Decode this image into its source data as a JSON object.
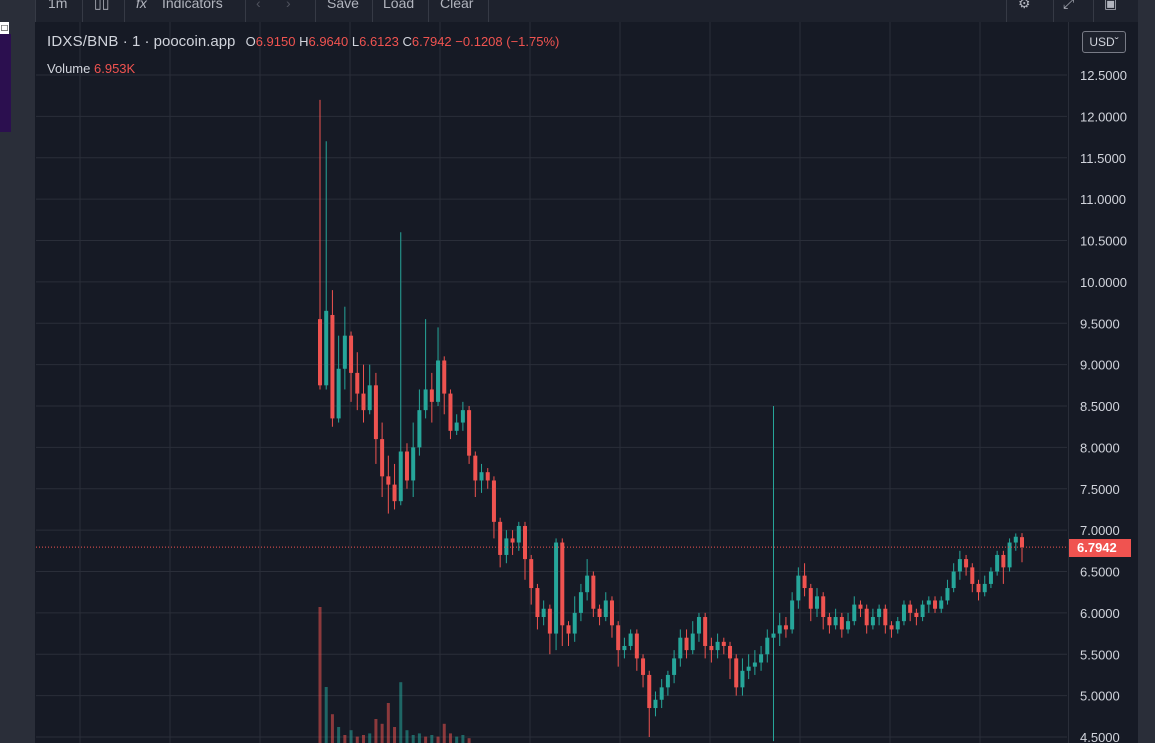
{
  "toolbar": {
    "interval": "1m",
    "indicators_label": "Indicators",
    "save_label": "Save",
    "load_label": "Load",
    "clear_label": "Clear",
    "currency": "USD"
  },
  "legend": {
    "pair": "IDXS/BNB",
    "interval": "1",
    "source": "poocoin.app",
    "o_label": "O",
    "o": "6.9150",
    "h_label": "H",
    "h": "6.9640",
    "l_label": "L",
    "l": "6.6123",
    "c_label": "C",
    "c": "6.7942",
    "change": "−0.1208 (−1.75%)",
    "volume_label": "Volume",
    "volume": "6.953K"
  },
  "colors": {
    "up": "#26a69a",
    "down": "#ef5350",
    "background": "#161a25",
    "grid": "#2a2e39"
  },
  "chart_data": {
    "type": "candlestick",
    "y_ticks": [
      "12.5000",
      "12.0000",
      "11.5000",
      "11.0000",
      "10.5000",
      "10.0000",
      "9.5000",
      "9.0000",
      "8.5000",
      "8.0000",
      "7.5000",
      "7.0000",
      "6.5000",
      "6.0000",
      "5.5000",
      "5.0000",
      "4.5000"
    ],
    "ylim": [
      4.45,
      12.95
    ],
    "last_price": "6.7942",
    "grid": true,
    "candles": [
      [
        9.55,
        8.75,
        12.2,
        8.7
      ],
      [
        8.75,
        9.65,
        11.7,
        8.7
      ],
      [
        9.6,
        8.35,
        9.9,
        8.25
      ],
      [
        8.35,
        8.95,
        9.35,
        8.3
      ],
      [
        8.95,
        9.35,
        9.7,
        8.7
      ],
      [
        9.35,
        8.9,
        9.4,
        8.55
      ],
      [
        8.9,
        8.65,
        9.15,
        8.45
      ],
      [
        8.65,
        8.45,
        9.0,
        8.3
      ],
      [
        8.45,
        8.75,
        9.0,
        8.4
      ],
      [
        8.75,
        8.1,
        8.9,
        7.8
      ],
      [
        8.1,
        7.65,
        8.3,
        7.4
      ],
      [
        7.65,
        7.55,
        7.9,
        7.2
      ],
      [
        7.55,
        7.35,
        7.8,
        7.25
      ],
      [
        7.35,
        7.95,
        10.6,
        7.3
      ],
      [
        7.95,
        7.6,
        8.05,
        7.5
      ],
      [
        7.6,
        8.0,
        8.3,
        7.4
      ],
      [
        8.0,
        8.45,
        8.7,
        7.9
      ],
      [
        8.45,
        8.7,
        9.55,
        8.35
      ],
      [
        8.7,
        8.55,
        8.9,
        8.3
      ],
      [
        8.55,
        9.05,
        9.45,
        8.5
      ],
      [
        9.05,
        8.65,
        9.1,
        8.4
      ],
      [
        8.65,
        8.2,
        8.7,
        8.1
      ],
      [
        8.2,
        8.3,
        8.4,
        8.15
      ],
      [
        8.3,
        8.45,
        8.55,
        8.2
      ],
      [
        8.45,
        7.9,
        8.5,
        7.8
      ],
      [
        7.9,
        7.6,
        7.95,
        7.4
      ],
      [
        7.6,
        7.7,
        7.8,
        7.45
      ],
      [
        7.7,
        7.6,
        7.75,
        7.5
      ],
      [
        7.6,
        7.1,
        7.65,
        6.9
      ],
      [
        7.1,
        6.7,
        7.15,
        6.55
      ],
      [
        6.7,
        6.9,
        7.0,
        6.6
      ],
      [
        6.9,
        6.85,
        7.0,
        6.7
      ],
      [
        6.85,
        7.05,
        7.1,
        6.75
      ],
      [
        7.05,
        6.65,
        7.1,
        6.4
      ],
      [
        6.65,
        6.3,
        6.7,
        6.1
      ],
      [
        6.3,
        5.95,
        6.35,
        5.8
      ],
      [
        5.95,
        6.05,
        6.15,
        5.85
      ],
      [
        6.05,
        5.75,
        6.1,
        5.5
      ],
      [
        5.75,
        6.85,
        6.9,
        5.55
      ],
      [
        6.85,
        5.85,
        6.9,
        5.6
      ],
      [
        5.85,
        5.75,
        5.9,
        5.6
      ],
      [
        5.75,
        6.0,
        6.2,
        5.65
      ],
      [
        6.0,
        6.25,
        6.35,
        5.9
      ],
      [
        6.25,
        6.45,
        6.65,
        6.15
      ],
      [
        6.45,
        6.05,
        6.5,
        5.95
      ],
      [
        6.05,
        5.95,
        6.1,
        5.85
      ],
      [
        5.95,
        6.15,
        6.25,
        5.9
      ],
      [
        6.15,
        5.85,
        6.2,
        5.7
      ],
      [
        5.85,
        5.55,
        5.9,
        5.35
      ],
      [
        5.55,
        5.6,
        5.7,
        5.45
      ],
      [
        5.6,
        5.75,
        5.8,
        5.55
      ],
      [
        5.75,
        5.45,
        5.8,
        5.3
      ],
      [
        5.45,
        5.25,
        5.5,
        5.1
      ],
      [
        5.25,
        4.85,
        5.3,
        4.5
      ],
      [
        4.85,
        4.95,
        5.05,
        4.75
      ],
      [
        4.95,
        5.1,
        5.2,
        4.85
      ],
      [
        5.1,
        5.25,
        5.3,
        5.0
      ],
      [
        5.25,
        5.45,
        5.55,
        5.15
      ],
      [
        5.45,
        5.7,
        5.8,
        5.35
      ],
      [
        5.7,
        5.55,
        5.8,
        5.45
      ],
      [
        5.55,
        5.75,
        5.9,
        5.5
      ],
      [
        5.75,
        5.95,
        6.0,
        5.65
      ],
      [
        5.95,
        5.6,
        6.0,
        5.45
      ],
      [
        5.6,
        5.55,
        5.7,
        5.4
      ],
      [
        5.55,
        5.65,
        5.75,
        5.45
      ],
      [
        5.65,
        5.6,
        5.7,
        5.5
      ],
      [
        5.6,
        5.45,
        5.65,
        5.2
      ],
      [
        5.45,
        5.1,
        5.5,
        5.0
      ],
      [
        5.1,
        5.3,
        5.45,
        5.0
      ],
      [
        5.3,
        5.35,
        5.5,
        5.2
      ],
      [
        5.35,
        5.4,
        5.55,
        5.25
      ],
      [
        5.4,
        5.5,
        5.6,
        5.3
      ],
      [
        5.5,
        5.7,
        5.8,
        5.4
      ],
      [
        5.7,
        5.75,
        8.5,
        4.45
      ],
      [
        5.75,
        5.85,
        6.0,
        5.6
      ],
      [
        5.85,
        5.8,
        5.95,
        5.7
      ],
      [
        5.8,
        6.15,
        6.25,
        5.75
      ],
      [
        6.15,
        6.45,
        6.55,
        6.05
      ],
      [
        6.45,
        6.3,
        6.6,
        6.2
      ],
      [
        6.3,
        6.05,
        6.35,
        5.9
      ],
      [
        6.05,
        6.2,
        6.3,
        5.95
      ],
      [
        6.2,
        5.95,
        6.25,
        5.8
      ],
      [
        5.95,
        5.85,
        6.0,
        5.75
      ],
      [
        5.85,
        5.95,
        6.05,
        5.8
      ],
      [
        5.95,
        5.8,
        6.0,
        5.7
      ],
      [
        5.8,
        5.9,
        6.0,
        5.75
      ],
      [
        5.9,
        6.1,
        6.2,
        5.85
      ],
      [
        6.1,
        6.05,
        6.15,
        5.95
      ],
      [
        6.05,
        5.85,
        6.1,
        5.75
      ],
      [
        5.85,
        5.95,
        6.05,
        5.8
      ],
      [
        5.95,
        6.05,
        6.1,
        5.85
      ],
      [
        6.05,
        5.85,
        6.1,
        5.75
      ],
      [
        5.85,
        5.8,
        5.9,
        5.7
      ],
      [
        5.8,
        5.9,
        5.95,
        5.75
      ],
      [
        5.9,
        6.1,
        6.15,
        5.85
      ],
      [
        6.1,
        6.0,
        6.15,
        5.9
      ],
      [
        6.0,
        5.95,
        6.05,
        5.85
      ],
      [
        5.95,
        6.1,
        6.15,
        5.9
      ],
      [
        6.1,
        6.15,
        6.2,
        6.0
      ],
      [
        6.15,
        6.05,
        6.2,
        6.0
      ],
      [
        6.05,
        6.15,
        6.2,
        6.0
      ],
      [
        6.15,
        6.3,
        6.4,
        6.1
      ],
      [
        6.3,
        6.5,
        6.6,
        6.25
      ],
      [
        6.5,
        6.65,
        6.75,
        6.4
      ],
      [
        6.65,
        6.55,
        6.7,
        6.45
      ],
      [
        6.55,
        6.35,
        6.6,
        6.25
      ],
      [
        6.35,
        6.25,
        6.4,
        6.15
      ],
      [
        6.25,
        6.35,
        6.45,
        6.2
      ],
      [
        6.35,
        6.5,
        6.55,
        6.3
      ],
      [
        6.5,
        6.7,
        6.75,
        6.45
      ],
      [
        6.7,
        6.55,
        6.75,
        6.35
      ],
      [
        6.55,
        6.85,
        6.9,
        6.5
      ],
      [
        6.85,
        6.92,
        6.96,
        6.75
      ],
      [
        6.915,
        6.7942,
        6.964,
        6.6123
      ]
    ],
    "volume": [
      [
        0.85,
        0
      ],
      [
        0.35,
        1
      ],
      [
        0.18,
        0
      ],
      [
        0.1,
        1
      ],
      [
        0.05,
        0
      ],
      [
        0.08,
        1
      ],
      [
        0.04,
        0
      ],
      [
        0.05,
        0
      ],
      [
        0.06,
        1
      ],
      [
        0.15,
        0
      ],
      [
        0.12,
        0
      ],
      [
        0.25,
        0
      ],
      [
        0.1,
        0
      ],
      [
        0.38,
        1
      ],
      [
        0.08,
        1
      ],
      [
        0.05,
        1
      ],
      [
        0.06,
        1
      ],
      [
        0.04,
        0
      ],
      [
        0.05,
        1
      ],
      [
        0.04,
        0
      ],
      [
        0.12,
        0
      ],
      [
        0.06,
        0
      ],
      [
        0.04,
        1
      ],
      [
        0.05,
        1
      ],
      [
        0.03,
        0
      ]
    ]
  }
}
